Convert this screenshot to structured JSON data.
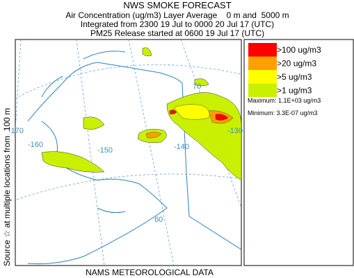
{
  "title": "NWS SMOKE FORECAST",
  "subtitle_lines": [
    "Air Concentration (ug/m3) Layer Average    0 m and  5000 m",
    "Integrated from 2300 19 Jul to 0000 20 Jul 17 (UTC)",
    "PM25 Release started at 0600 19 Jul 17 (UTC)"
  ],
  "legend": {
    "items": [
      {
        "label": ">100 ug/m3",
        "color": "#ff0000"
      },
      {
        "label": ">20 ug/m3",
        "color": "#ffa000"
      },
      {
        "label": ">5 ug/m3",
        "color": "#ffff00"
      },
      {
        "label": ">1 ug/m3",
        "color": "#c8f000"
      }
    ],
    "maximum": "Maximum: 1.1E+03 ug/m3",
    "minimum": "Minimum: 3.3E-07 ug/m3"
  },
  "side_label": "Source ☆ at multiple locations from  100 m",
  "footer": "NAMS METEOROLOGICAL DATA",
  "map_labels": [
    "-170",
    "-160",
    "-150",
    "-140",
    "-130",
    "60",
    "70"
  ]
}
